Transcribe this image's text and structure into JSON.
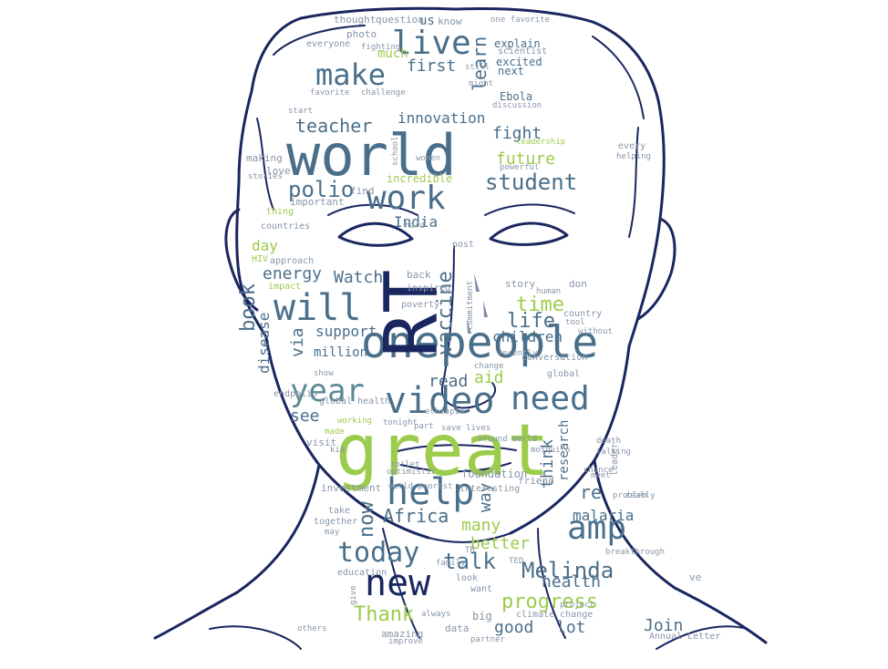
{
  "colors": {
    "navy": "#1a2660",
    "slate": "#4a6f8a",
    "teal": "#5a8a95",
    "green": "#9ccc4c",
    "grey": "#8796a8"
  },
  "words": {
    "great": "great",
    "world": "world",
    "onepeople": "onepeople",
    "rt": "RT",
    "will": "will",
    "video": "video",
    "help": "help",
    "year": "year",
    "need": "need",
    "amp": "amp",
    "new": "new",
    "work": "work",
    "live": "live",
    "make": "make",
    "today": "today",
    "melinda": "Melinda",
    "progress": "progress",
    "thank": "Thank",
    "talk": "talk",
    "now": "now",
    "africa": "Africa",
    "vaccine": "vaccine",
    "polio": "polio",
    "student": "student",
    "teacher": "teacher",
    "book": "book",
    "innovation": "innovation",
    "energy": "energy",
    "india": "India",
    "time": "time",
    "life": "life",
    "future": "future",
    "fight": "fight",
    "children": "children",
    "support": "support",
    "disease": "disease",
    "via": "via",
    "watch": "Watch",
    "see": "see",
    "read": "read",
    "aid": "aid",
    "million": "million",
    "day": "day",
    "health": "health",
    "many": "many",
    "better": "better",
    "malaria": "malaria",
    "good": "good",
    "lot": "lot",
    "join": "Join",
    "think": "think",
    "research": "research",
    "way": "way",
    "re": "re",
    "first": "first",
    "learn": "learn",
    "much": "much",
    "us": "us",
    "know": "know",
    "explain": "explain",
    "excited": "excited",
    "next": "next",
    "ebola": "Ebola",
    "question": "question",
    "thought": "thought",
    "photo": "photo",
    "everyone": "everyone",
    "scientist": "scientist",
    "incredible": "incredible",
    "making": "making",
    "love": "love",
    "find": "find",
    "important": "important",
    "countries": "countries",
    "thing": "thing",
    "hiv": "HIV",
    "approach": "approach",
    "impact": "impact",
    "back": "back",
    "inspired": "inspired",
    "post": "post",
    "story": "story",
    "don": "don",
    "poverty": "poverty",
    "endpolio": "endpolio",
    "global": "global",
    "global_health": "global health",
    "visit": "visit",
    "investment": "investment",
    "foundation": "foundation",
    "friend": "friend",
    "interesting": "interesting",
    "education": "education",
    "together": "together",
    "amazing": "amazing",
    "data": "data",
    "big": "big",
    "climate_change": "climate change",
    "annual_letter": "Annual Letter",
    "ted": "TED",
    "breakthrough": "breakthrough",
    "want": "want",
    "project": "project",
    "ve": "ve",
    "really": "really",
    "leader": "leader",
    "problem": "problem",
    "meet": "meet",
    "death": "death",
    "talking": "talking",
    "optimistic": "optimistic",
    "save_lives": "save lives",
    "around_world": "around world",
    "conversation": "conversation",
    "recently": "recently",
    "change": "change",
    "country": "country",
    "without": "without",
    "tool": "tool",
    "every": "every",
    "helping": "helping",
    "school": "school",
    "women": "women",
    "stories": "stories",
    "challenge": "challenge",
    "favorite": "favorite",
    "start": "start",
    "fighting": "fighting",
    "one_favorite": "one favorite",
    "might": "might",
    "still": "still",
    "kid": "kid",
    "give": "give",
    "others": "others",
    "improve": "improve",
    "always": "always",
    "partner": "partner",
    "powerful": "powerful",
    "hard": "hard",
    "mosquito": "mosquito",
    "leadership": "leadership",
    "discussion": "discussion",
    "commitment": "commitment",
    "tonight": "tonight",
    "part": "part",
    "poorest": "poorest",
    "world_poorest": "world poorest",
    "toilet": "toilet",
    "chance": "chance",
    "family": "family",
    "look": "look",
    "take": "take",
    "may": "may",
    "human": "human",
    "ethiopia": "ethiopia",
    "show": "show",
    "working": "working",
    "made": "made",
    "tb": "TB"
  }
}
